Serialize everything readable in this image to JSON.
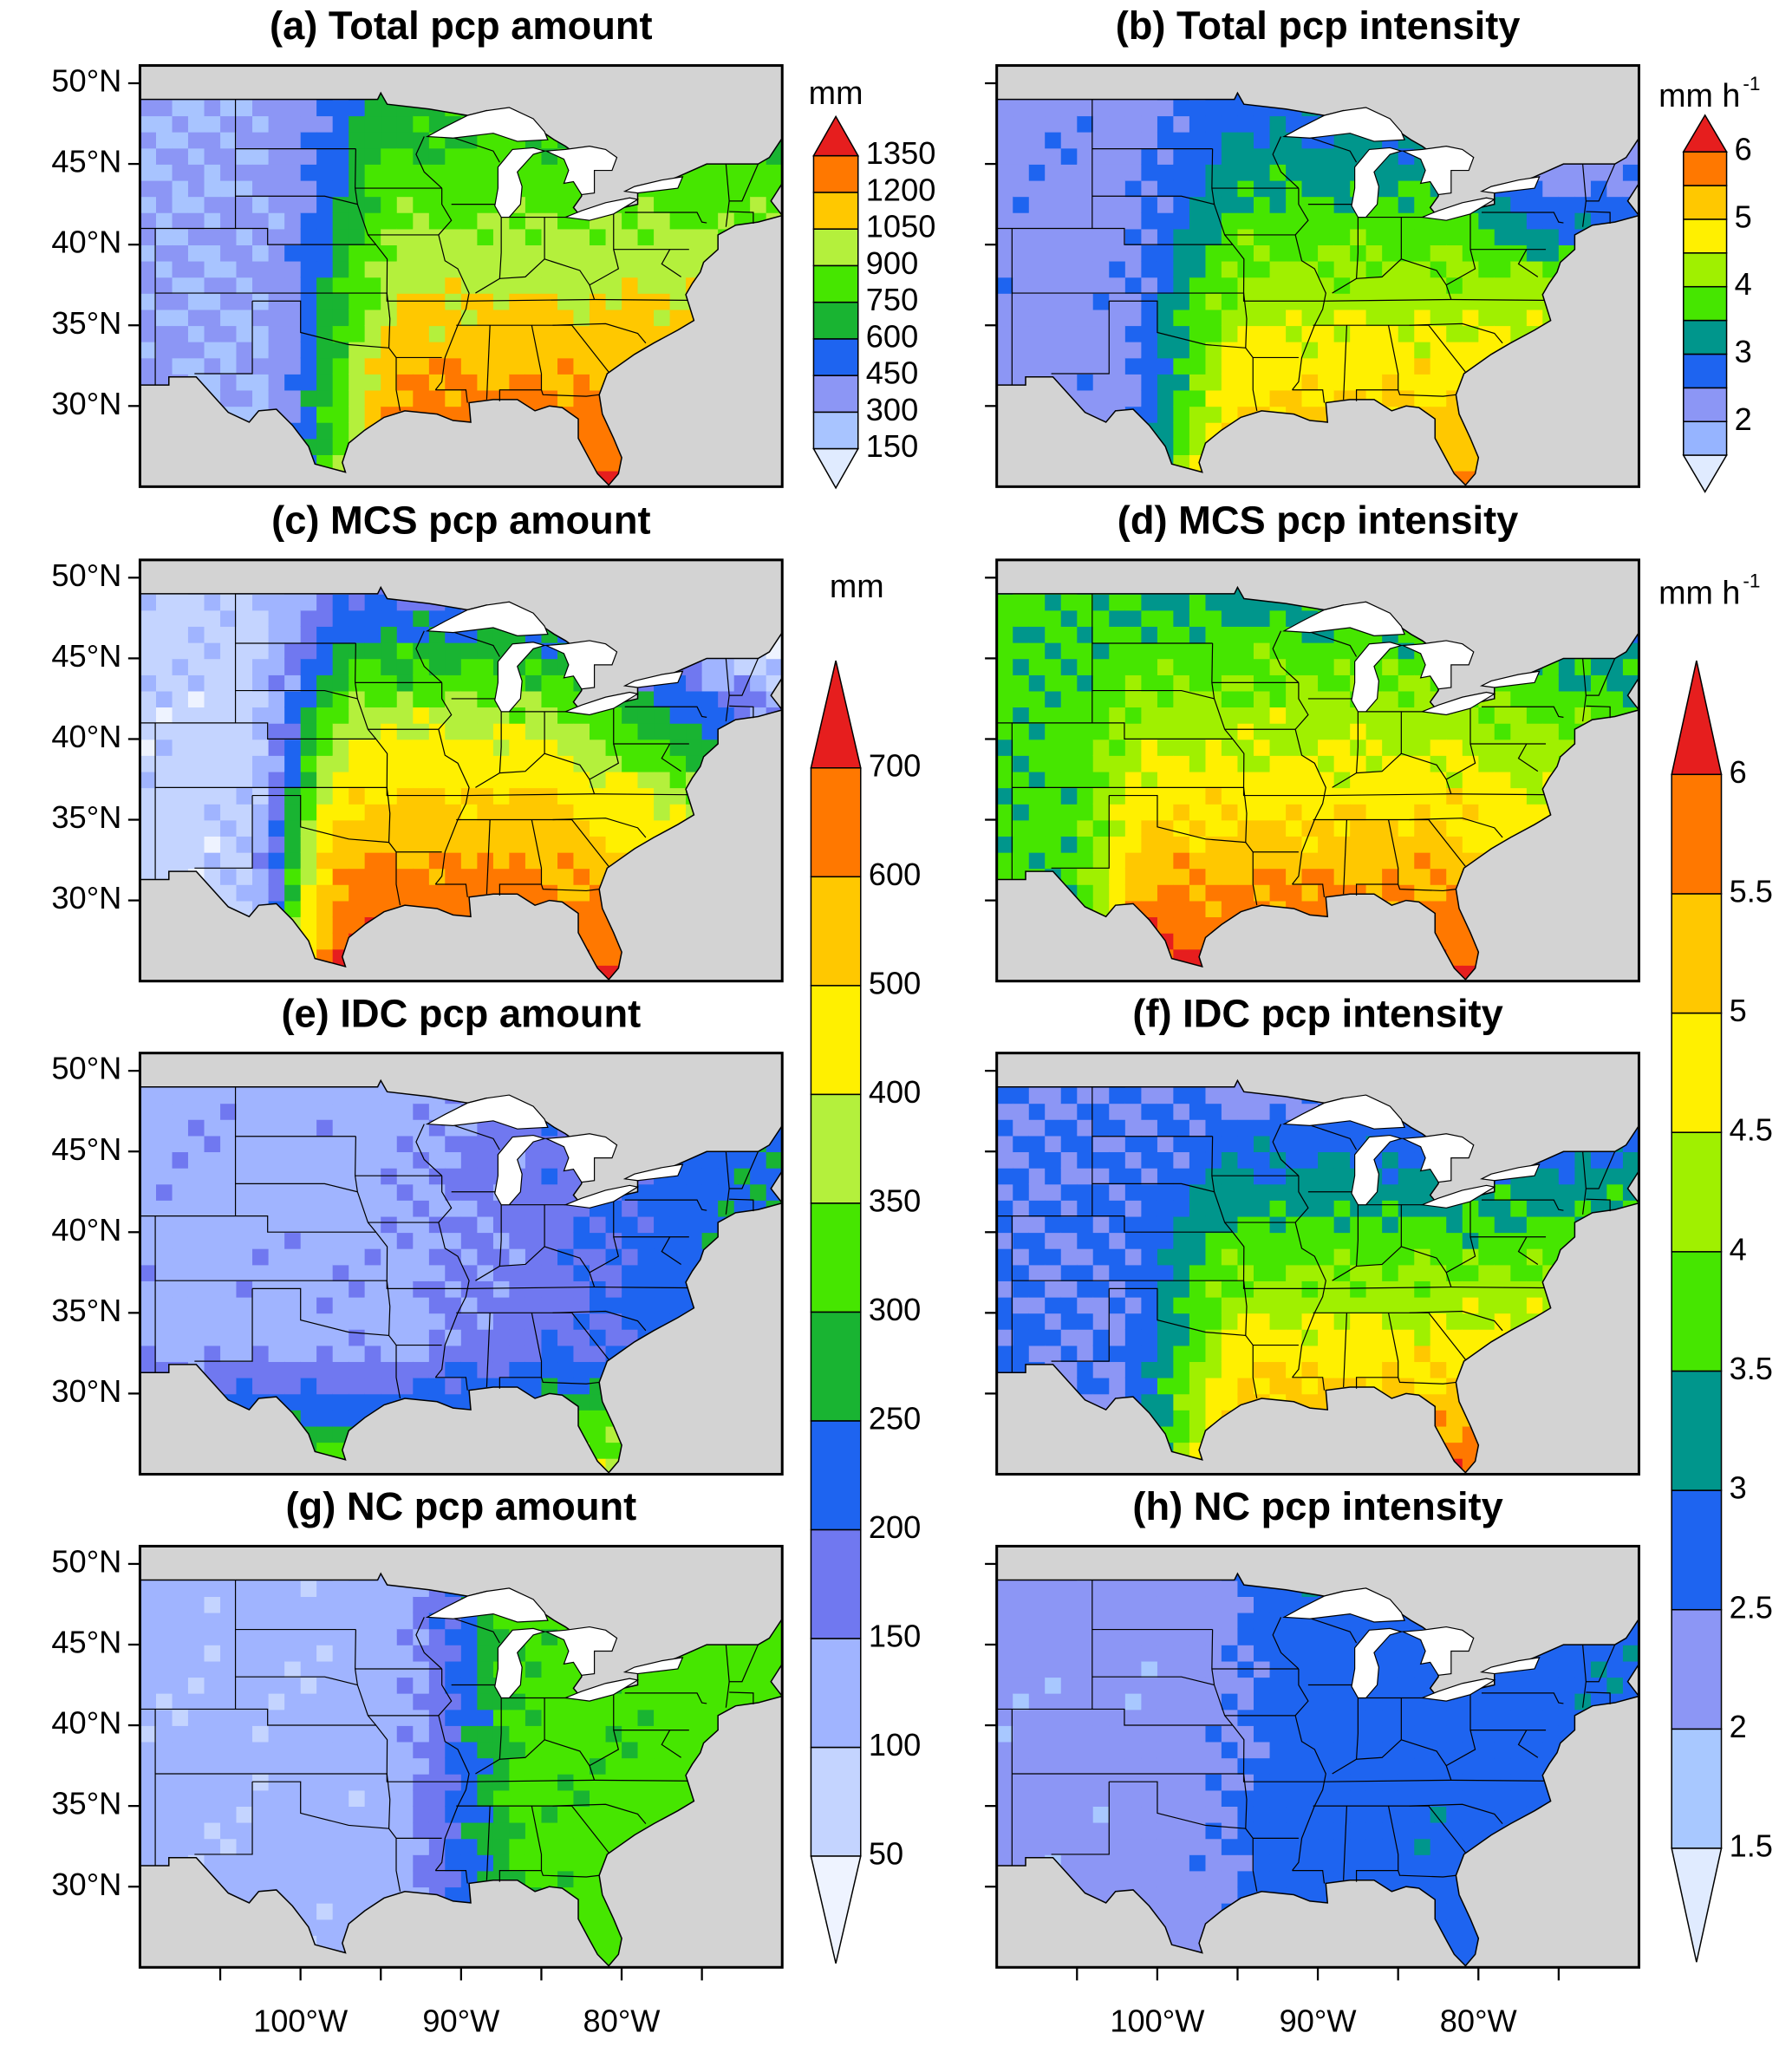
{
  "panel_titles": [
    "(a) Total pcp amount",
    "(b) Total pcp intensity",
    "(c) MCS pcp amount",
    "(d) MCS pcp intensity",
    "(e) IDC pcp amount",
    "(f) IDC pcp intensity",
    "(g) NC pcp amount",
    "(h) NC pcp intensity"
  ],
  "xlim": [
    -110,
    -70
  ],
  "ylim": [
    25,
    51.1
  ],
  "lat_ticks": [
    {
      "value": 50,
      "label": "50°N"
    },
    {
      "value": 45,
      "label": "45°N"
    },
    {
      "value": 40,
      "label": "40°N"
    },
    {
      "value": 35,
      "label": "35°N"
    },
    {
      "value": 30,
      "label": "30°N"
    }
  ],
  "lon_ticks": [
    {
      "value": -100,
      "label": "100°W"
    },
    {
      "value": -90,
      "label": "90°W"
    },
    {
      "value": -80,
      "label": "80°W"
    }
  ],
  "colorbars": [
    {
      "unit": "mm",
      "ticks": [
        150,
        300,
        450,
        600,
        750,
        900,
        1050,
        1200,
        1350
      ],
      "colors": [
        "#e0ebff",
        "#a8c4ff",
        "#8c96f5",
        "#1e64f0",
        "#19b432",
        "#46e600",
        "#b4f03c",
        "#ffc800",
        "#ff7800",
        "#e61e1e"
      ]
    },
    {
      "unit": "mm h",
      "unit_sup": "-1",
      "ticks": [
        2,
        3,
        4,
        5,
        6
      ],
      "levels": [
        1.5,
        2,
        2.5,
        3,
        3.5,
        4,
        4.5,
        5,
        5.5,
        6
      ],
      "colors": [
        "#e0ebff",
        "#96b4ff",
        "#8c96f5",
        "#1e64f0",
        "#00968c",
        "#46e600",
        "#a0f000",
        "#fff000",
        "#ffc800",
        "#ff7800",
        "#e61e1e"
      ]
    },
    {
      "unit": "mm",
      "ticks": [
        50,
        100,
        150,
        200,
        250,
        300,
        350,
        400,
        500,
        600,
        700
      ],
      "colors": [
        "#eef3ff",
        "#c4d4ff",
        "#a0b4ff",
        "#7078f0",
        "#1e64f0",
        "#19b432",
        "#46e600",
        "#b4f03c",
        "#fff000",
        "#ffc800",
        "#ff7800",
        "#e61e1e"
      ]
    },
    {
      "unit": "mm h",
      "unit_sup": "-1",
      "ticks": [
        1.5,
        2,
        2.5,
        3,
        3.5,
        4,
        4.5,
        5,
        5.5,
        6
      ],
      "colors": [
        "#e0ebff",
        "#a8c8ff",
        "#8c96f5",
        "#1e64f0",
        "#00968c",
        "#46e600",
        "#a0f000",
        "#fff000",
        "#ffc800",
        "#ff7800",
        "#e61e1e"
      ]
    }
  ]
}
